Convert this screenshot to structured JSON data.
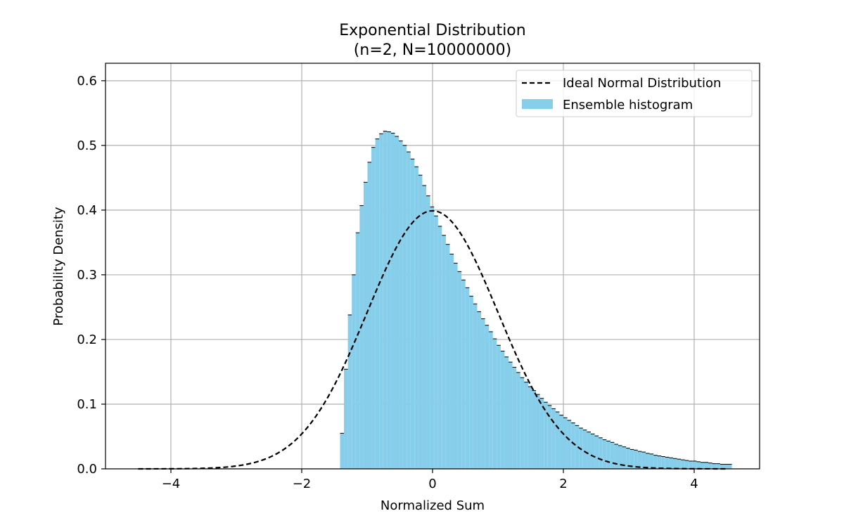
{
  "chart_data": {
    "type": "bar",
    "title": "Exponential Distribution",
    "subtitle": "(n=2, N=10000000)",
    "xlabel": "Normalized Sum",
    "ylabel": "Probability Density",
    "xlim": [
      -5,
      5
    ],
    "ylim": [
      0,
      0.627
    ],
    "xticks": [
      -4,
      -2,
      0,
      2,
      4
    ],
    "xtick_labels": [
      "−4",
      "−2",
      "0",
      "2",
      "4"
    ],
    "yticks": [
      0,
      0.1,
      0.2,
      0.3,
      0.4,
      0.5,
      0.6
    ],
    "ytick_labels": [
      "0.0",
      "0.1",
      "0.2",
      "0.3",
      "0.4",
      "0.5",
      "0.6"
    ],
    "grid": true,
    "legend_position": "upper right",
    "series": [
      {
        "name": "Ideal Normal Distribution",
        "kind": "line",
        "style": "dashed",
        "color": "#000000",
        "x_range": [
          -4.5,
          4.5
        ]
      },
      {
        "name": "Ensemble histogram",
        "kind": "histogram",
        "color": "#87ceeb",
        "x_min": -1.4142,
        "bin_width": 0.0599,
        "values": [
          0.055,
          0.154,
          0.238,
          0.3,
          0.365,
          0.407,
          0.443,
          0.474,
          0.497,
          0.51,
          0.518,
          0.522,
          0.521,
          0.519,
          0.514,
          0.507,
          0.5,
          0.49,
          0.479,
          0.467,
          0.454,
          0.438,
          0.422,
          0.405,
          0.391,
          0.375,
          0.361,
          0.347,
          0.332,
          0.318,
          0.305,
          0.292,
          0.28,
          0.267,
          0.255,
          0.243,
          0.232,
          0.222,
          0.212,
          0.201,
          0.191,
          0.182,
          0.173,
          0.165,
          0.157,
          0.149,
          0.141,
          0.134,
          0.127,
          0.121,
          0.115,
          0.109,
          0.103,
          0.098,
          0.093,
          0.088,
          0.083,
          0.079,
          0.075,
          0.071,
          0.067,
          0.063,
          0.06,
          0.057,
          0.054,
          0.051,
          0.048,
          0.045,
          0.043,
          0.041,
          0.038,
          0.036,
          0.034,
          0.032,
          0.03,
          0.029,
          0.027,
          0.026,
          0.024,
          0.023,
          0.021,
          0.02,
          0.019,
          0.018,
          0.017,
          0.016,
          0.015,
          0.014,
          0.013,
          0.012,
          0.012,
          0.011,
          0.01,
          0.01,
          0.009,
          0.008,
          0.008,
          0.007,
          0.007,
          0.007
        ]
      }
    ]
  }
}
